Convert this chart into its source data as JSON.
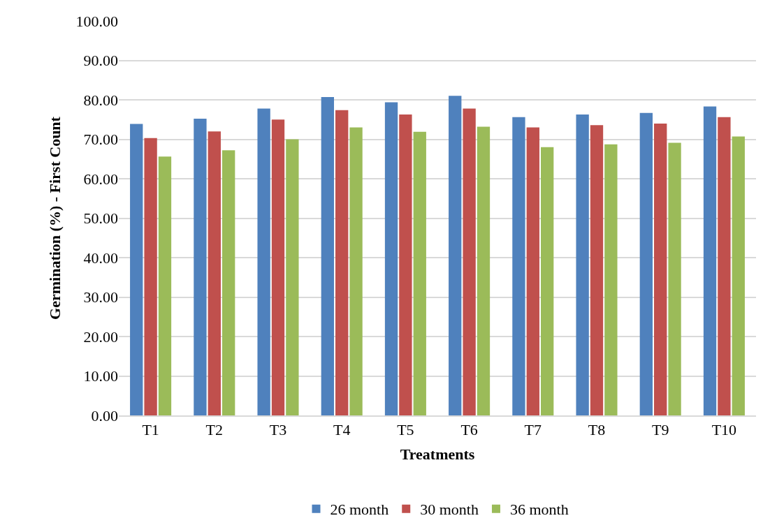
{
  "chart_data": {
    "type": "bar",
    "xlabel": "Treatments",
    "ylabel": "Germination (%) - First Count",
    "categories": [
      "T1",
      "T2",
      "T3",
      "T4",
      "T5",
      "T6",
      "T7",
      "T8",
      "T9",
      "T10"
    ],
    "series": [
      {
        "name": "26 month",
        "color": "#4f81bd",
        "values": [
          73.9,
          75.2,
          77.8,
          80.7,
          79.4,
          81.0,
          75.6,
          76.3,
          76.7,
          78.3
        ]
      },
      {
        "name": "30 month",
        "color": "#c0504d",
        "values": [
          70.3,
          72.0,
          75.0,
          77.4,
          76.3,
          77.8,
          73.0,
          73.6,
          74.0,
          75.6
        ]
      },
      {
        "name": "36 month",
        "color": "#9bbb59",
        "values": [
          65.6,
          67.2,
          70.0,
          73.0,
          71.9,
          73.2,
          68.0,
          68.7,
          69.1,
          70.7
        ]
      }
    ],
    "ylim": [
      0,
      100
    ],
    "yticks": [
      {
        "value": 0,
        "label": "0.00"
      },
      {
        "value": 10,
        "label": "10.00"
      },
      {
        "value": 20,
        "label": "20.00"
      },
      {
        "value": 30,
        "label": "30.00"
      },
      {
        "value": 40,
        "label": "40.00"
      },
      {
        "value": 50,
        "label": "50.00"
      },
      {
        "value": 60,
        "label": "60.00"
      },
      {
        "value": 70,
        "label": "70.00"
      },
      {
        "value": 80,
        "label": "80.00"
      },
      {
        "value": 90,
        "label": "90.00"
      },
      {
        "value": 100,
        "label": "100.00"
      }
    ],
    "grid": "y",
    "legend": "bottom"
  }
}
